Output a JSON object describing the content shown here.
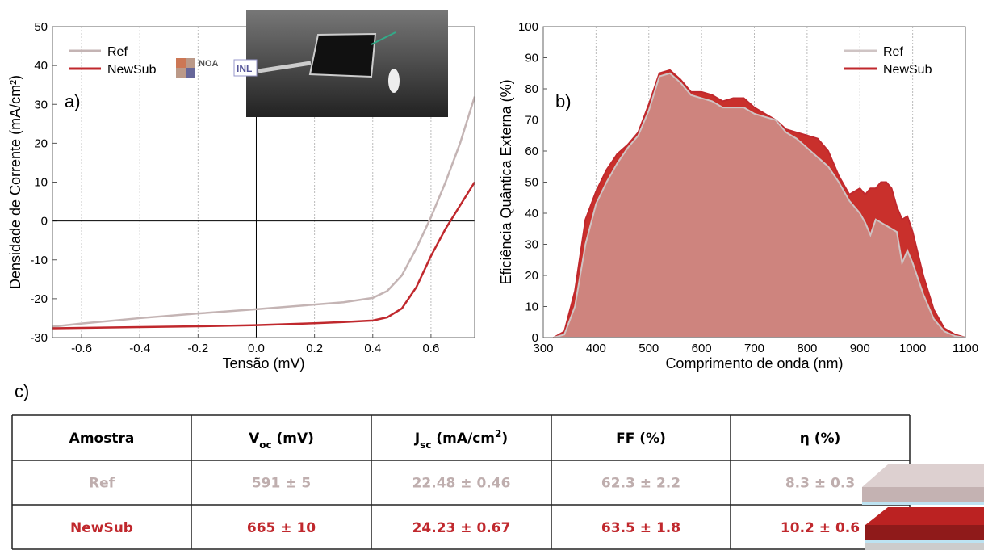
{
  "chart_data": [
    {
      "type": "line",
      "panel_label": "a)",
      "x_label": "Tensão (mV)",
      "y_label": "Densidade de Corrente (mA/cm²)",
      "xlim": [
        -0.7,
        0.75
      ],
      "ylim": [
        -30,
        50
      ],
      "xticks": [
        -0.6,
        -0.4,
        -0.2,
        {
          "value": 0,
          "label": "0.0"
        },
        0.2,
        0.4,
        0.6
      ],
      "yticks": [
        -30,
        -20,
        -10,
        0,
        10,
        20,
        30,
        40,
        50
      ],
      "grid": "x",
      "origin_lines": true,
      "legend": "upper left",
      "logos": [
        "NOA",
        "INL"
      ],
      "x": [
        -0.7,
        -0.6,
        -0.4,
        -0.2,
        0,
        0.2,
        0.3,
        0.4,
        0.45,
        0.5,
        0.55,
        0.6,
        0.65,
        0.7,
        0.75
      ],
      "series": [
        {
          "name": "Ref",
          "color": "#c4b4b4",
          "values": [
            -27.2,
            -26.4,
            -25,
            -23.8,
            -22.7,
            -21.5,
            -20.9,
            -19.8,
            -18,
            -14,
            -7,
            1,
            10,
            20,
            32
          ]
        },
        {
          "name": "NewSub",
          "color": "#c0282d",
          "values": [
            -27.6,
            -27.5,
            -27.3,
            -27.1,
            -26.8,
            -26.3,
            -26,
            -25.6,
            -24.8,
            -22.5,
            -17,
            -9,
            -2,
            4,
            10
          ]
        }
      ]
    },
    {
      "type": "area",
      "panel_label": "b)",
      "x_label": "Comprimento de onda (nm)",
      "y_label": "Eficiência Quântica Externa (%)",
      "xlim": [
        300,
        1100
      ],
      "ylim": [
        0,
        100
      ],
      "xticks": [
        300,
        400,
        500,
        600,
        700,
        800,
        900,
        1000,
        1100
      ],
      "yticks": [
        0,
        10,
        20,
        30,
        40,
        50,
        60,
        70,
        80,
        90,
        100
      ],
      "grid": "x",
      "origin_lines": false,
      "legend": "upper right",
      "x": [
        320,
        340,
        360,
        380,
        400,
        420,
        440,
        460,
        480,
        500,
        520,
        540,
        560,
        580,
        600,
        620,
        640,
        660,
        680,
        700,
        720,
        740,
        760,
        780,
        800,
        820,
        840,
        860,
        880,
        900,
        910,
        920,
        930,
        940,
        950,
        960,
        970,
        980,
        990,
        1000,
        1020,
        1040,
        1060,
        1080,
        1100
      ],
      "series": [
        {
          "name": "Ref",
          "color": "#cfc4c4",
          "fill": "#cf9a94",
          "values": [
            0,
            1,
            10,
            30,
            43,
            50,
            56,
            61,
            65,
            73,
            84,
            85,
            82,
            78,
            77,
            76,
            74,
            74,
            74,
            72,
            71,
            70,
            66,
            64,
            61,
            58,
            55,
            50,
            44,
            40,
            37,
            33,
            38,
            37,
            36,
            35,
            34,
            24,
            28,
            24,
            14,
            6,
            2,
            0.5,
            0
          ]
        },
        {
          "name": "NewSub",
          "color": "#c0282d",
          "fill": "#c9302c",
          "values": [
            0,
            2,
            15,
            38,
            47,
            54,
            59,
            62,
            66,
            75,
            85,
            86,
            83,
            79,
            79,
            78,
            76,
            77,
            77,
            74,
            72,
            70,
            67,
            66,
            65,
            64,
            60,
            52,
            46,
            48,
            46,
            48,
            48,
            50,
            50,
            48,
            42,
            38,
            39,
            34,
            20,
            9,
            3,
            1,
            0
          ]
        }
      ]
    }
  ],
  "table": {
    "panel_label": "c)",
    "header": [
      [
        {
          "t": "Amostra"
        }
      ],
      [
        {
          "t": "V"
        },
        {
          "t": "oc",
          "sub": true
        },
        {
          "t": " (mV)"
        }
      ],
      [
        {
          "t": "J"
        },
        {
          "t": "sc",
          "sub": true
        },
        {
          "t": " (mA/cm"
        },
        {
          "t": "2",
          "sup": true
        },
        {
          "t": ")"
        }
      ],
      [
        {
          "t": "FF (%)"
        }
      ],
      [
        {
          "t": "η (%)"
        }
      ]
    ],
    "rows": [
      {
        "color": "#bfaeae",
        "cells": [
          "Ref",
          "591 ± 5",
          "22.48 ± 0.46",
          "62.3 ± 2.2",
          "8.3 ± 0.3"
        ]
      },
      {
        "color": "#c0282d",
        "cells": [
          "NewSub",
          "665 ± 10",
          "24.23 ± 0.67",
          "63.5 ± 1.8",
          "10.2 ± 0.6"
        ]
      }
    ]
  }
}
